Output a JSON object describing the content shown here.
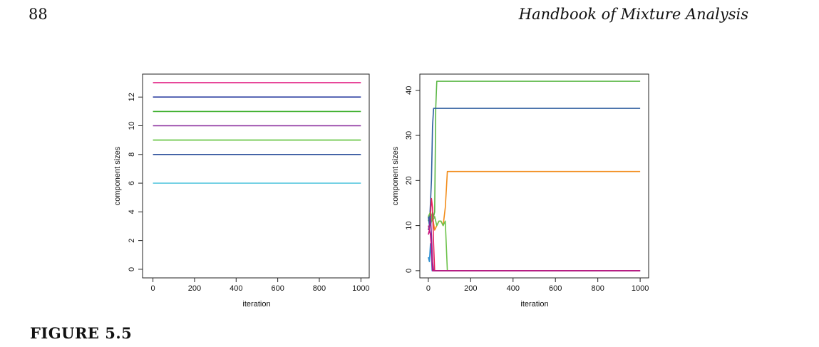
{
  "header": {
    "page_number": "88",
    "running_title": "Handbook of Mixture Analysis"
  },
  "figure": {
    "label": "FIGURE 5.5"
  },
  "chart_data": [
    {
      "type": "line",
      "xlabel": "iteration",
      "ylabel": "component sizes",
      "xlim": [
        -50,
        1040
      ],
      "ylim": [
        -0.6,
        13.6
      ],
      "xticks": [
        0,
        200,
        400,
        600,
        800,
        1000
      ],
      "yticks": [
        0,
        2,
        4,
        6,
        8,
        10,
        12
      ],
      "grid": false,
      "series": [
        {
          "color": "#e0177f",
          "x": [
            0,
            1000
          ],
          "y": [
            13,
            13
          ]
        },
        {
          "color": "#2c3fa0",
          "x": [
            0,
            1000
          ],
          "y": [
            12,
            12
          ]
        },
        {
          "color": "#45b235",
          "x": [
            0,
            1000
          ],
          "y": [
            11,
            11
          ]
        },
        {
          "color": "#8a2c9e",
          "x": [
            0,
            1000
          ],
          "y": [
            10,
            10
          ]
        },
        {
          "color": "#5fc23a",
          "x": [
            0,
            1000
          ],
          "y": [
            9,
            9
          ]
        },
        {
          "color": "#2a4e9a",
          "x": [
            0,
            1000
          ],
          "y": [
            8,
            8
          ]
        },
        {
          "color": "#5bc8df",
          "x": [
            0,
            1000
          ],
          "y": [
            6,
            6
          ]
        }
      ]
    },
    {
      "type": "line",
      "xlabel": "iteration",
      "ylabel": "component sizes",
      "xlim": [
        -40,
        1040
      ],
      "ylim": [
        -1.6,
        43.6
      ],
      "xticks": [
        0,
        200,
        400,
        600,
        800,
        1000
      ],
      "yticks": [
        0,
        10,
        20,
        30,
        40
      ],
      "grid": false,
      "series": [
        {
          "color": "#5bb745",
          "x": [
            0,
            5,
            10,
            15,
            20,
            25,
            30,
            35,
            40,
            45,
            50,
            55,
            60,
            65,
            70,
            75,
            80,
            85,
            90,
            1000
          ],
          "y": [
            11,
            12,
            10,
            11,
            13,
            12,
            13,
            36,
            42,
            42,
            42,
            42,
            42,
            42,
            42,
            42,
            42,
            42,
            42,
            42
          ]
        },
        {
          "color": "#2e5f9e",
          "x": [
            0,
            5,
            10,
            15,
            20,
            25,
            30,
            1000
          ],
          "y": [
            12,
            10,
            15,
            20,
            32,
            36,
            36,
            36
          ]
        },
        {
          "color": "#f28c1a",
          "x": [
            0,
            10,
            20,
            30,
            40,
            50,
            60,
            70,
            80,
            85,
            90,
            1000
          ],
          "y": [
            9,
            11,
            12,
            9,
            10,
            11,
            11,
            10,
            14,
            18,
            22,
            22
          ]
        },
        {
          "color": "#6cc24a",
          "x": [
            0,
            10,
            20,
            30,
            40,
            50,
            60,
            70,
            80,
            90,
            1000
          ],
          "y": [
            12,
            13,
            11,
            12,
            10,
            11,
            11,
            10,
            11,
            0,
            0
          ]
        },
        {
          "color": "#e8215c",
          "x": [
            0,
            5,
            10,
            15,
            20,
            25,
            30,
            35,
            1000
          ],
          "y": [
            10,
            9,
            12,
            16,
            14,
            6,
            0,
            0,
            0
          ]
        },
        {
          "color": "#7a2ea0",
          "x": [
            0,
            5,
            10,
            15,
            20,
            25,
            1000
          ],
          "y": [
            9,
            10,
            12,
            8,
            2,
            0,
            0
          ]
        },
        {
          "color": "#2e8fd0",
          "x": [
            0,
            5,
            10,
            15,
            18,
            1000
          ],
          "y": [
            3,
            2,
            6,
            3,
            0,
            0
          ]
        },
        {
          "color": "#c8107a",
          "x": [
            0,
            5,
            10,
            15,
            20,
            1000
          ],
          "y": [
            8,
            9,
            8,
            5,
            0,
            0
          ]
        }
      ]
    }
  ]
}
